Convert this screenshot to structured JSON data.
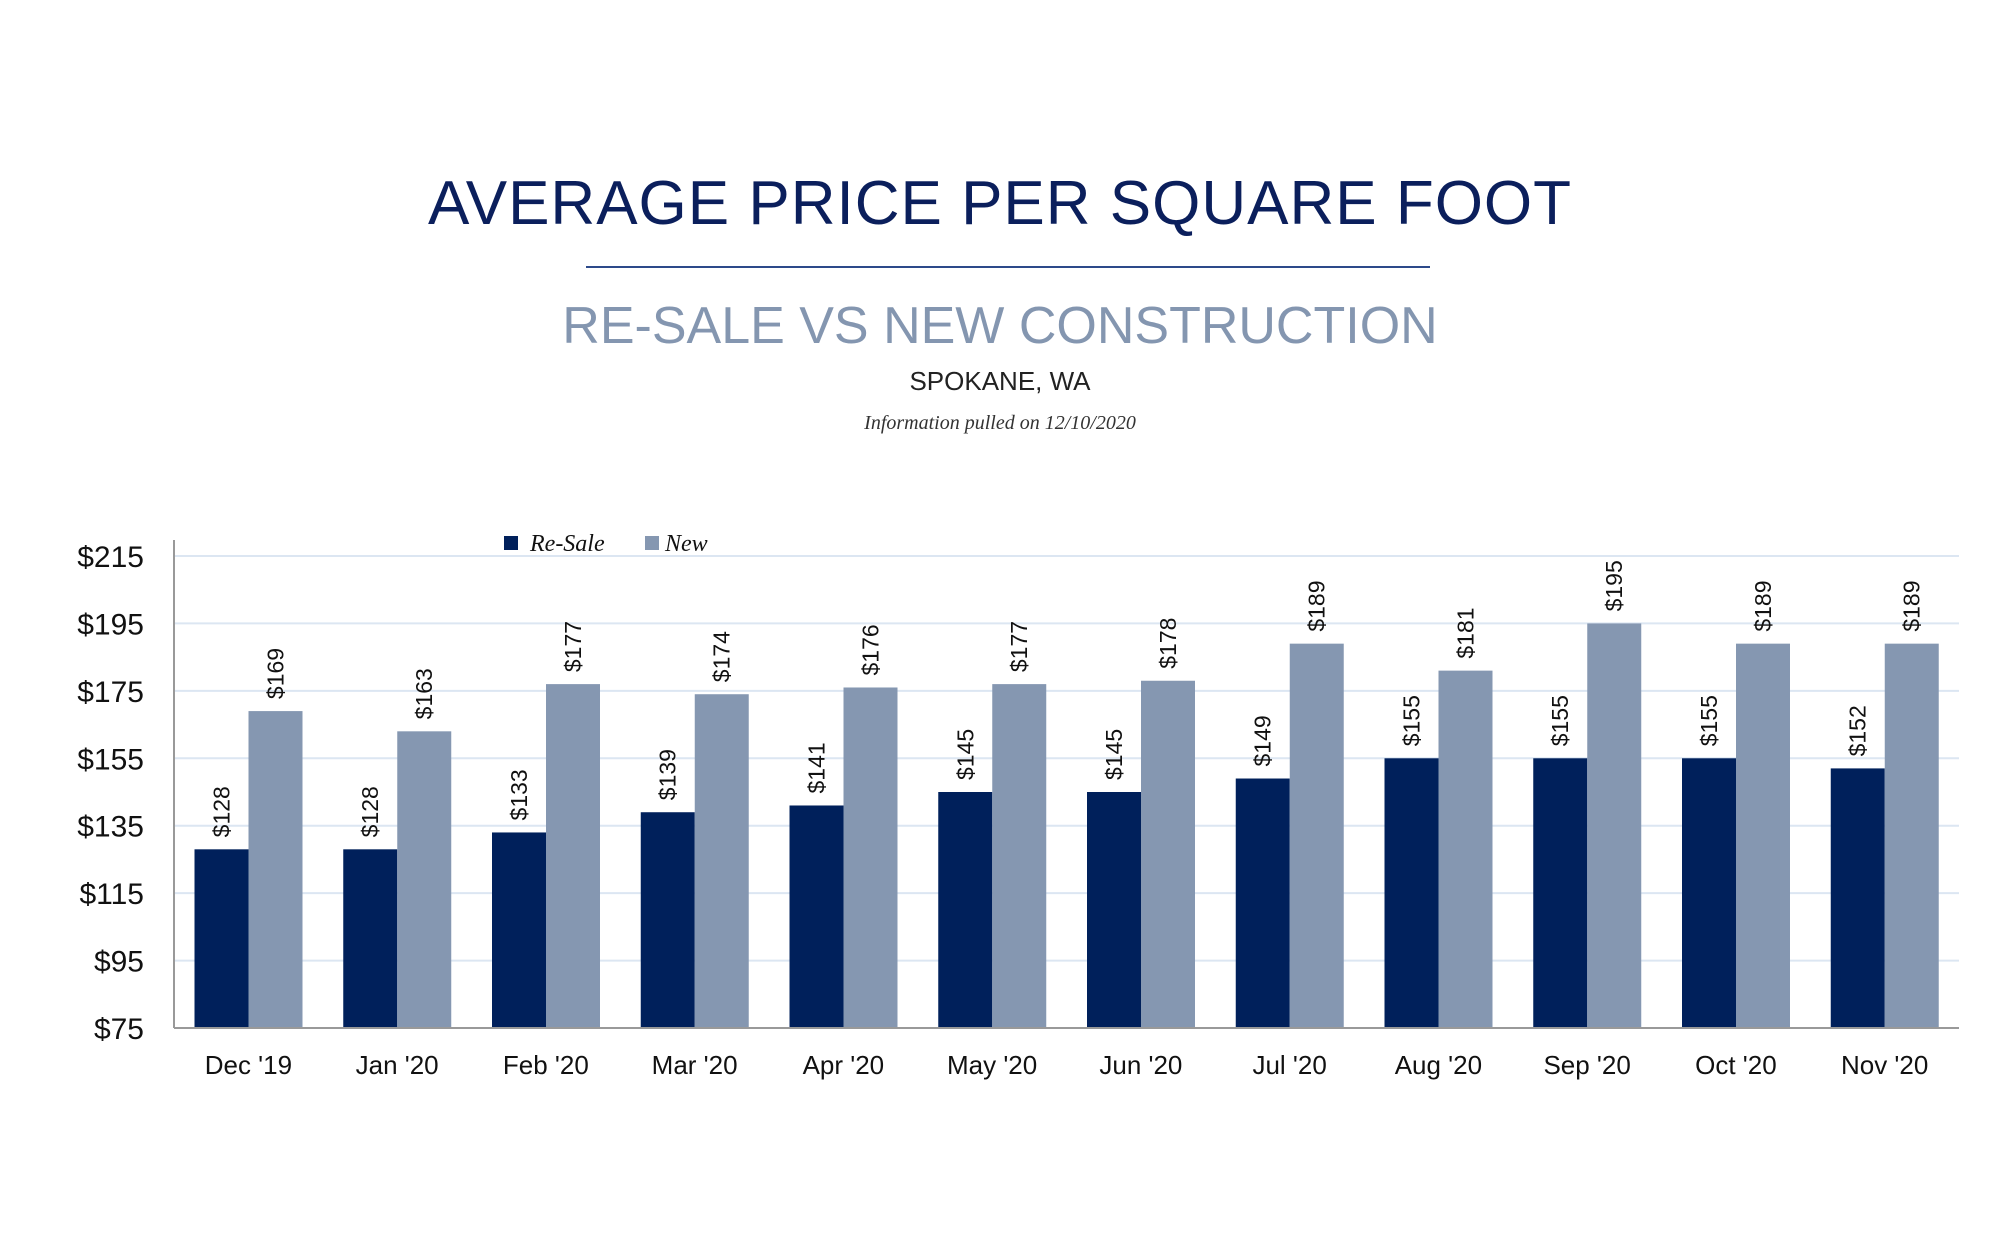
{
  "header": {
    "title": "AVERAGE PRICE PER SQUARE FOOT",
    "subtitle": "RE-SALE VS NEW CONSTRUCTION",
    "location": "SPOKANE, WA",
    "info": "Information pulled on 12/10/2020"
  },
  "chart_data": {
    "type": "bar",
    "categories": [
      "Dec '19",
      "Jan '20",
      "Feb '20",
      "Mar '20",
      "Apr '20",
      "May '20",
      "Jun '20",
      "Jul '20",
      "Aug '20",
      "Sep '20",
      "Oct '20",
      "Nov '20"
    ],
    "series": [
      {
        "name": "Re-Sale",
        "color": "#00205b",
        "values": [
          128,
          128,
          133,
          139,
          141,
          145,
          145,
          149,
          155,
          155,
          155,
          152
        ],
        "labels": [
          "$128",
          "$128",
          "$133",
          "$139",
          "$141",
          "$145",
          "$145",
          "$149",
          "$155",
          "$155",
          "$155",
          "$152"
        ]
      },
      {
        "name": "New",
        "color": "#8597b1",
        "values": [
          169,
          163,
          177,
          174,
          176,
          177,
          178,
          189,
          181,
          195,
          189,
          189
        ],
        "labels": [
          "$169",
          "$163",
          "$177",
          "$174",
          "$176",
          "$177",
          "$178",
          "$189",
          "$181",
          "$195",
          "$189",
          "$189"
        ]
      }
    ],
    "ylim": [
      75,
      215
    ],
    "yticks": [
      "$75",
      "$95",
      "$115",
      "$135",
      "$155",
      "$175",
      "$195",
      "$215"
    ],
    "ytick_values": [
      75,
      95,
      115,
      135,
      155,
      175,
      195,
      215
    ],
    "grid": true,
    "legend": "top-left"
  }
}
